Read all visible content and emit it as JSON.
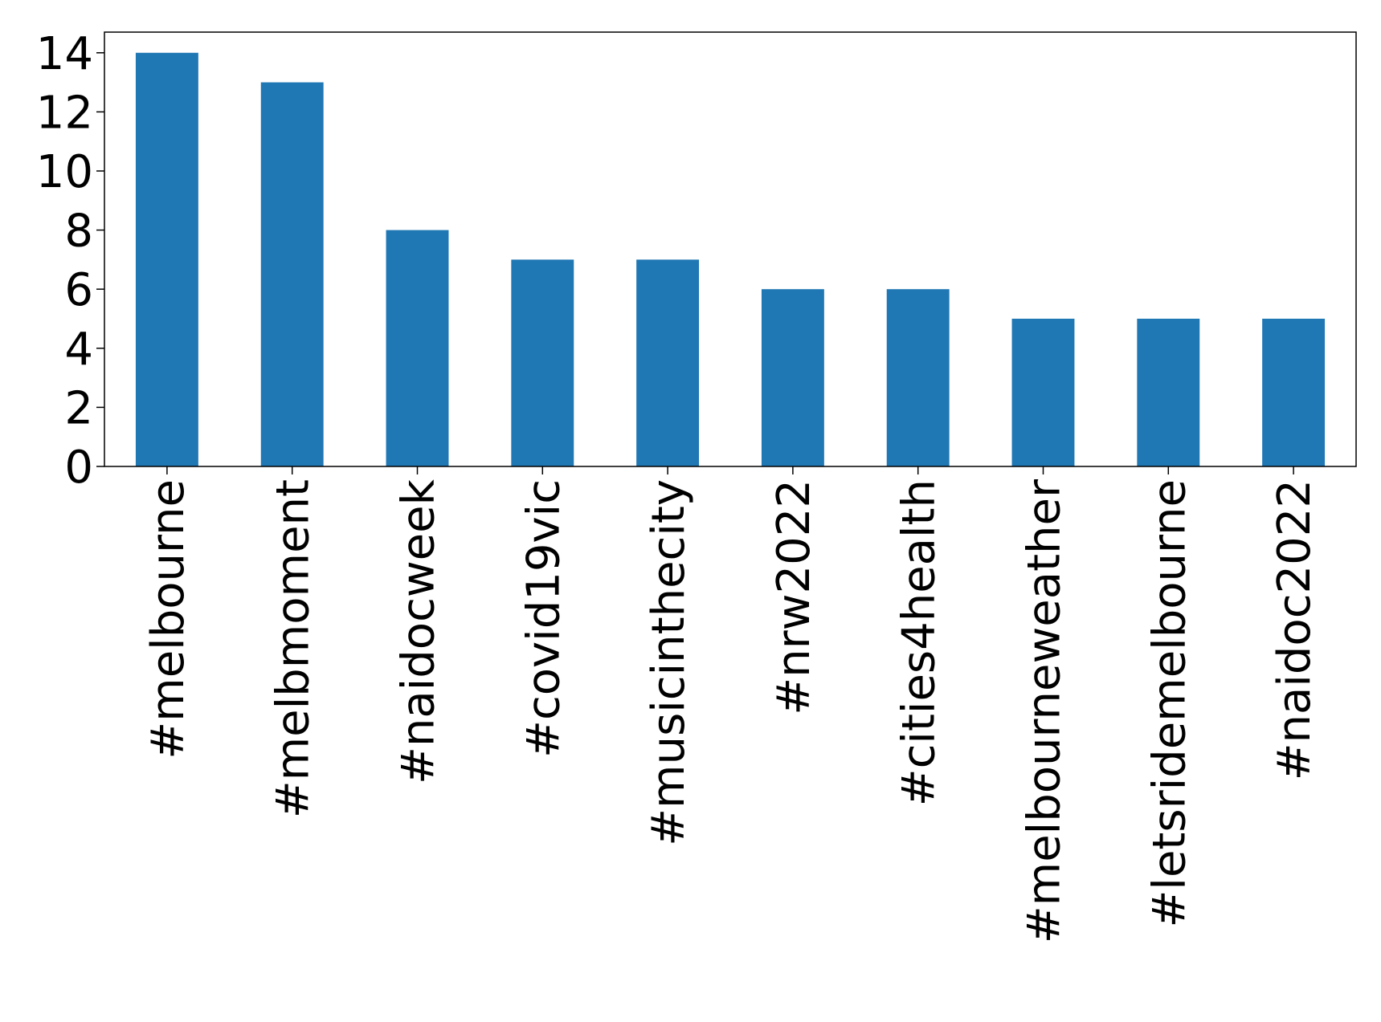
{
  "chart_data": {
    "type": "bar",
    "categories": [
      "#melbourne",
      "#melbmoment",
      "#naidocweek",
      "#covid19vic",
      "#musicinthecity",
      "#nrw2022",
      "#cities4health",
      "#melbourneweather",
      "#letsridemelbourne",
      "#naidoc2022"
    ],
    "values": [
      14,
      13,
      8,
      7,
      7,
      6,
      6,
      5,
      5,
      5
    ],
    "color": "#1f77b4",
    "ylim": [
      0,
      14.7
    ],
    "yticks": [
      0,
      2,
      4,
      6,
      8,
      10,
      12,
      14
    ],
    "grid": false
  }
}
